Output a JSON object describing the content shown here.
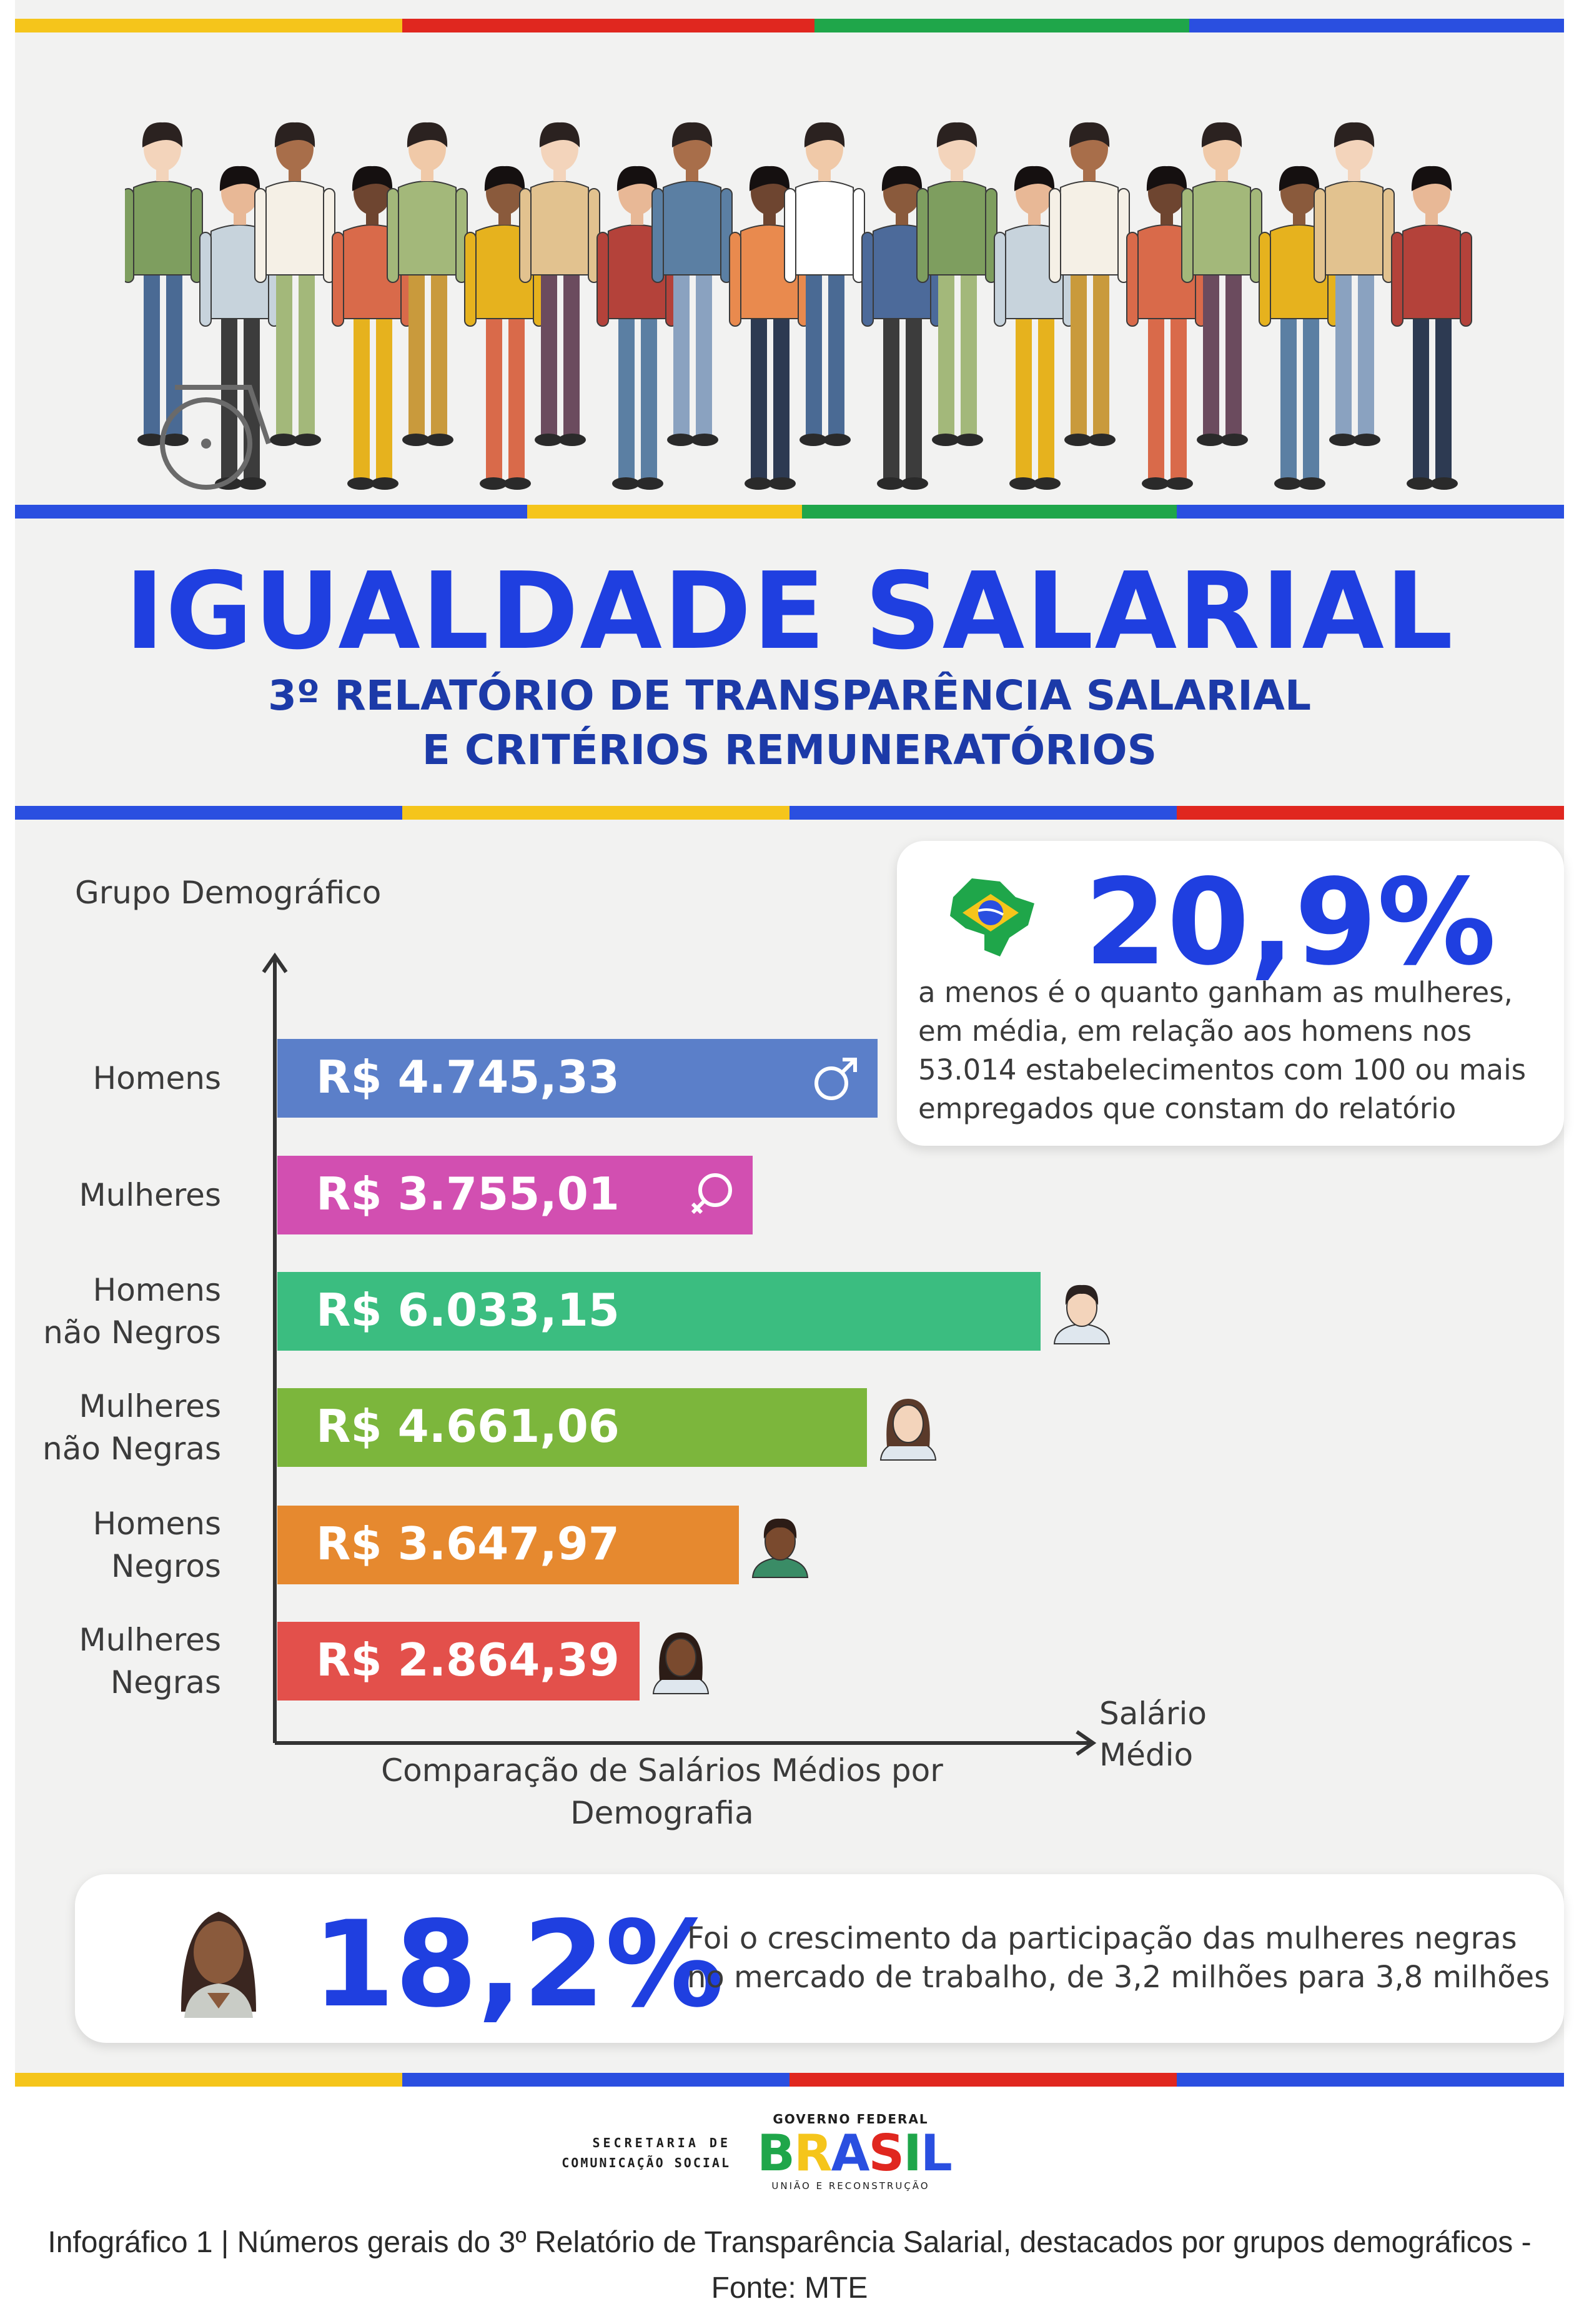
{
  "header": {
    "title": "IGUALDADE SALARIAL",
    "subtitle_line1": "3º RELATÓRIO DE TRANSPARÊNCIA SALARIAL",
    "subtitle_line2": "E CRITÉRIOS REMUNERATÓRIOS"
  },
  "colors": {
    "blue": "#2a4fe0",
    "green": "#1fa64a",
    "yellow": "#f5c51b",
    "red": "#e0271f",
    "accent_text": "#1f3fe0"
  },
  "chart_data": {
    "type": "bar",
    "orientation": "horizontal",
    "title": "Comparação de Salários Médios por Demografia",
    "ylabel": "Grupo Demográfico",
    "xlabel": "Salário Médio",
    "categories": [
      "Homens",
      "Mulheres",
      "Homens não Negros",
      "Mulheres não Negras",
      "Homens Negros",
      "Mulheres Negras"
    ],
    "category_lines": [
      [
        "Homens"
      ],
      [
        "Mulheres"
      ],
      [
        "Homens",
        "não Negros"
      ],
      [
        "Mulheres",
        "não Negras"
      ],
      [
        "Homens",
        "Negros"
      ],
      [
        "Mulheres",
        "Negras"
      ]
    ],
    "values": [
      4745.33,
      3755.01,
      6033.15,
      4661.06,
      3647.97,
      2864.39
    ],
    "value_labels": [
      "R$ 4.745,33",
      "R$ 3.755,01",
      "R$ 6.033,15",
      "R$ 4.661,06",
      "R$ 3.647,97",
      "R$ 2.864,39"
    ],
    "bar_colors": [
      "#5b7fc9",
      "#d24fb1",
      "#3bbd80",
      "#7cb63c",
      "#e6892f",
      "#e3504b"
    ],
    "icons": [
      "male-symbol-icon",
      "female-symbol-icon",
      "man-avatar-icon",
      "woman-avatar-icon",
      "black-man-avatar-icon",
      "black-woman-avatar-icon"
    ],
    "xlim": [
      0,
      6033.15
    ],
    "grid": false
  },
  "stat_wage_gap": {
    "value": "20,9%",
    "icon": "brazil-map-icon",
    "lines": [
      "a menos é o quanto ganham as mulheres,",
      "em média, em relação aos homens nos",
      "53.014 estabelecimentos com 100 ou mais",
      "empregados que constam do relatório"
    ]
  },
  "stat_black_women": {
    "value": "18,2%",
    "icon": "black-woman-portrait-icon",
    "lines": [
      "Foi o crescimento da participação das mulheres negras",
      "no mercado de trabalho, de 3,2 milhões para 3,8 milhões"
    ]
  },
  "footer": {
    "secom_line1": "SECRETARIA DE",
    "secom_line2": "COMUNICAÇÃO SOCIAL",
    "gov_line1": "GOVERNO FEDERAL",
    "gov_word": "BRASIL",
    "gov_line2": "UNIÃO E RECONSTRUÇÃO",
    "caption_line1": "Infográfico 1 | Números gerais do 3º Relatório de Transparência Salarial, destacados por grupos demográficos -",
    "caption_line2": "Fonte: MTE"
  }
}
